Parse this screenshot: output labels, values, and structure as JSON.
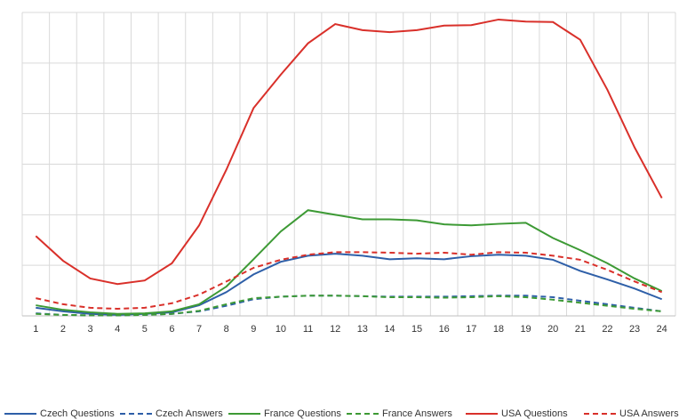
{
  "chart_data": {
    "type": "line",
    "categories": [
      "1",
      "2",
      "3",
      "4",
      "5",
      "6",
      "7",
      "8",
      "9",
      "10",
      "11",
      "12",
      "13",
      "14",
      "15",
      "16",
      "17",
      "18",
      "19",
      "20",
      "21",
      "22",
      "23",
      "24"
    ],
    "ylim": [
      0,
      6
    ],
    "ygridlines": [
      0,
      1,
      2,
      3,
      4,
      5,
      6
    ],
    "grid": true,
    "legend": "bottom",
    "series": [
      {
        "name": "Czech Questions",
        "color": "#2e5fa8",
        "dashed": false,
        "values": [
          0.16,
          0.09,
          0.04,
          0.02,
          0.04,
          0.07,
          0.21,
          0.47,
          0.82,
          1.07,
          1.19,
          1.23,
          1.19,
          1.12,
          1.14,
          1.12,
          1.18,
          1.21,
          1.19,
          1.11,
          0.89,
          0.72,
          0.54,
          0.33
        ]
      },
      {
        "name": "Czech Answers",
        "color": "#2e5fa8",
        "dashed": true,
        "values": [
          0.05,
          0.02,
          0.01,
          0.01,
          0.02,
          0.04,
          0.09,
          0.2,
          0.33,
          0.38,
          0.4,
          0.4,
          0.39,
          0.38,
          0.38,
          0.38,
          0.39,
          0.4,
          0.4,
          0.37,
          0.3,
          0.23,
          0.16,
          0.09
        ]
      },
      {
        "name": "France Questions",
        "color": "#3d9a35",
        "dashed": false,
        "values": [
          0.21,
          0.12,
          0.07,
          0.04,
          0.05,
          0.09,
          0.23,
          0.58,
          1.12,
          1.67,
          2.09,
          2.0,
          1.91,
          1.91,
          1.89,
          1.81,
          1.79,
          1.82,
          1.84,
          1.54,
          1.3,
          1.04,
          0.74,
          0.49
        ]
      },
      {
        "name": "France Answers",
        "color": "#3d9a35",
        "dashed": true,
        "values": [
          0.04,
          0.02,
          0.01,
          0.01,
          0.02,
          0.04,
          0.1,
          0.23,
          0.35,
          0.38,
          0.4,
          0.4,
          0.39,
          0.37,
          0.37,
          0.36,
          0.37,
          0.39,
          0.37,
          0.32,
          0.26,
          0.2,
          0.14,
          0.09
        ]
      },
      {
        "name": "USA Questions",
        "color": "#d9302a",
        "dashed": false,
        "values": [
          1.58,
          1.09,
          0.74,
          0.63,
          0.7,
          1.04,
          1.79,
          2.89,
          4.11,
          4.77,
          5.39,
          5.77,
          5.65,
          5.61,
          5.65,
          5.74,
          5.75,
          5.86,
          5.82,
          5.81,
          5.46,
          4.47,
          3.33,
          2.33
        ]
      },
      {
        "name": "USA Answers",
        "color": "#d9302a",
        "dashed": true,
        "values": [
          0.35,
          0.23,
          0.16,
          0.14,
          0.16,
          0.25,
          0.42,
          0.68,
          0.95,
          1.11,
          1.21,
          1.26,
          1.26,
          1.25,
          1.23,
          1.25,
          1.21,
          1.26,
          1.25,
          1.19,
          1.11,
          0.91,
          0.68,
          0.47
        ]
      }
    ]
  }
}
